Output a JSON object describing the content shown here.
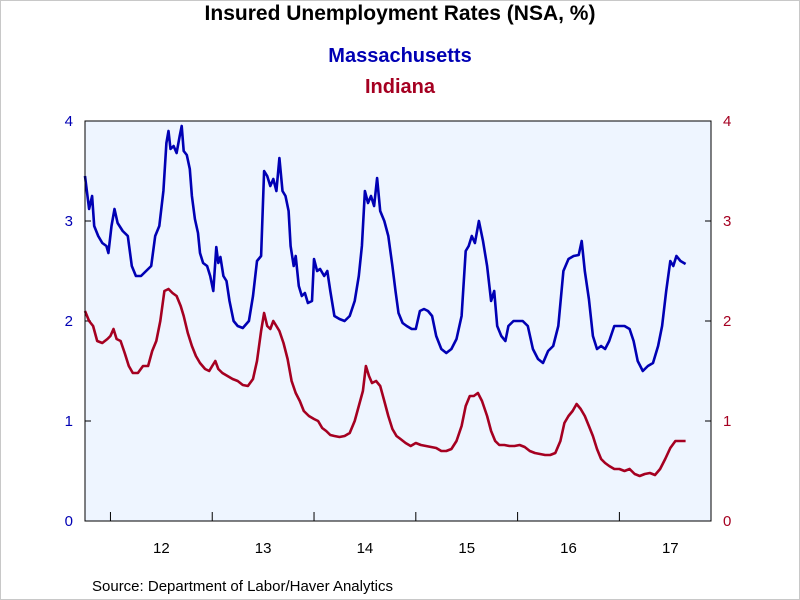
{
  "chart_data": {
    "type": "line",
    "title": "Insured Unemployment Rates (NSA, %)",
    "source": "Source:  Department of Labor/Haver Analytics",
    "x_ticks": [
      "12",
      "13",
      "14",
      "15",
      "16",
      "17"
    ],
    "y_left_ticks": [
      "0",
      "1",
      "2",
      "3",
      "4"
    ],
    "y_right_ticks": [
      "0",
      "1",
      "2",
      "3",
      "4"
    ],
    "y_left_range": [
      0,
      4
    ],
    "y_right_range": [
      0,
      4
    ],
    "x_range": [
      2011.75,
      2017.9
    ],
    "background_color": "#eef5ff",
    "series": [
      {
        "name": "Massachusetts",
        "axis": "left",
        "color": "#0000b4",
        "points": [
          [
            2011.75,
            3.45
          ],
          [
            2011.79,
            3.12
          ],
          [
            2011.82,
            3.25
          ],
          [
            2011.84,
            2.95
          ],
          [
            2011.88,
            2.85
          ],
          [
            2011.92,
            2.78
          ],
          [
            2011.96,
            2.75
          ],
          [
            2011.98,
            2.68
          ],
          [
            2012.01,
            2.95
          ],
          [
            2012.04,
            3.12
          ],
          [
            2012.07,
            2.98
          ],
          [
            2012.12,
            2.9
          ],
          [
            2012.17,
            2.85
          ],
          [
            2012.21,
            2.55
          ],
          [
            2012.25,
            2.45
          ],
          [
            2012.3,
            2.45
          ],
          [
            2012.35,
            2.5
          ],
          [
            2012.4,
            2.55
          ],
          [
            2012.44,
            2.85
          ],
          [
            2012.48,
            2.95
          ],
          [
            2012.52,
            3.3
          ],
          [
            2012.55,
            3.78
          ],
          [
            2012.57,
            3.9
          ],
          [
            2012.59,
            3.72
          ],
          [
            2012.62,
            3.75
          ],
          [
            2012.65,
            3.68
          ],
          [
            2012.68,
            3.85
          ],
          [
            2012.7,
            3.95
          ],
          [
            2012.72,
            3.7
          ],
          [
            2012.75,
            3.66
          ],
          [
            2012.78,
            3.52
          ],
          [
            2012.8,
            3.25
          ],
          [
            2012.83,
            3.02
          ],
          [
            2012.86,
            2.88
          ],
          [
            2012.88,
            2.68
          ],
          [
            2012.91,
            2.58
          ],
          [
            2012.95,
            2.55
          ],
          [
            2012.98,
            2.45
          ],
          [
            2013.01,
            2.3
          ],
          [
            2013.04,
            2.74
          ],
          [
            2013.06,
            2.58
          ],
          [
            2013.08,
            2.64
          ],
          [
            2013.11,
            2.45
          ],
          [
            2013.14,
            2.4
          ],
          [
            2013.17,
            2.2
          ],
          [
            2013.21,
            2.0
          ],
          [
            2013.25,
            1.95
          ],
          [
            2013.3,
            1.93
          ],
          [
            2013.36,
            2.0
          ],
          [
            2013.4,
            2.25
          ],
          [
            2013.44,
            2.6
          ],
          [
            2013.48,
            2.65
          ],
          [
            2013.51,
            3.5
          ],
          [
            2013.54,
            3.45
          ],
          [
            2013.57,
            3.35
          ],
          [
            2013.6,
            3.42
          ],
          [
            2013.63,
            3.3
          ],
          [
            2013.66,
            3.63
          ],
          [
            2013.69,
            3.3
          ],
          [
            2013.72,
            3.25
          ],
          [
            2013.75,
            3.1
          ],
          [
            2013.77,
            2.75
          ],
          [
            2013.8,
            2.55
          ],
          [
            2013.82,
            2.65
          ],
          [
            2013.85,
            2.35
          ],
          [
            2013.88,
            2.25
          ],
          [
            2013.91,
            2.28
          ],
          [
            2013.94,
            2.18
          ],
          [
            2013.98,
            2.2
          ],
          [
            2014.0,
            2.62
          ],
          [
            2014.03,
            2.5
          ],
          [
            2014.06,
            2.52
          ],
          [
            2014.1,
            2.45
          ],
          [
            2014.13,
            2.5
          ],
          [
            2014.16,
            2.3
          ],
          [
            2014.2,
            2.05
          ],
          [
            2014.25,
            2.02
          ],
          [
            2014.3,
            2.0
          ],
          [
            2014.35,
            2.05
          ],
          [
            2014.4,
            2.2
          ],
          [
            2014.44,
            2.45
          ],
          [
            2014.47,
            2.75
          ],
          [
            2014.5,
            3.3
          ],
          [
            2014.53,
            3.18
          ],
          [
            2014.56,
            3.25
          ],
          [
            2014.59,
            3.15
          ],
          [
            2014.62,
            3.43
          ],
          [
            2014.65,
            3.1
          ],
          [
            2014.69,
            3.0
          ],
          [
            2014.73,
            2.85
          ],
          [
            2014.77,
            2.55
          ],
          [
            2014.8,
            2.3
          ],
          [
            2014.83,
            2.08
          ],
          [
            2014.87,
            1.98
          ],
          [
            2014.91,
            1.95
          ],
          [
            2014.96,
            1.92
          ],
          [
            2015.0,
            1.92
          ],
          [
            2015.04,
            2.1
          ],
          [
            2015.08,
            2.12
          ],
          [
            2015.12,
            2.1
          ],
          [
            2015.16,
            2.05
          ],
          [
            2015.2,
            1.85
          ],
          [
            2015.25,
            1.72
          ],
          [
            2015.3,
            1.68
          ],
          [
            2015.35,
            1.72
          ],
          [
            2015.4,
            1.82
          ],
          [
            2015.45,
            2.05
          ],
          [
            2015.49,
            2.7
          ],
          [
            2015.52,
            2.75
          ],
          [
            2015.55,
            2.85
          ],
          [
            2015.58,
            2.78
          ],
          [
            2015.62,
            3.0
          ],
          [
            2015.66,
            2.8
          ],
          [
            2015.7,
            2.55
          ],
          [
            2015.74,
            2.2
          ],
          [
            2015.77,
            2.3
          ],
          [
            2015.8,
            1.95
          ],
          [
            2015.84,
            1.85
          ],
          [
            2015.88,
            1.8
          ],
          [
            2015.91,
            1.95
          ],
          [
            2015.96,
            2.0
          ],
          [
            2016.0,
            2.0
          ],
          [
            2016.05,
            2.0
          ],
          [
            2016.1,
            1.95
          ],
          [
            2016.15,
            1.72
          ],
          [
            2016.2,
            1.62
          ],
          [
            2016.25,
            1.58
          ],
          [
            2016.3,
            1.7
          ],
          [
            2016.35,
            1.75
          ],
          [
            2016.4,
            1.95
          ],
          [
            2016.45,
            2.5
          ],
          [
            2016.5,
            2.62
          ],
          [
            2016.55,
            2.65
          ],
          [
            2016.6,
            2.66
          ],
          [
            2016.63,
            2.8
          ],
          [
            2016.66,
            2.5
          ],
          [
            2016.7,
            2.22
          ],
          [
            2016.74,
            1.85
          ],
          [
            2016.78,
            1.72
          ],
          [
            2016.82,
            1.75
          ],
          [
            2016.86,
            1.72
          ],
          [
            2016.9,
            1.8
          ],
          [
            2016.95,
            1.95
          ],
          [
            2017.0,
            1.95
          ],
          [
            2017.05,
            1.95
          ],
          [
            2017.1,
            1.92
          ],
          [
            2017.14,
            1.8
          ],
          [
            2017.18,
            1.6
          ],
          [
            2017.23,
            1.5
          ],
          [
            2017.28,
            1.55
          ],
          [
            2017.33,
            1.58
          ],
          [
            2017.38,
            1.75
          ],
          [
            2017.42,
            1.95
          ],
          [
            2017.46,
            2.3
          ],
          [
            2017.5,
            2.6
          ],
          [
            2017.53,
            2.55
          ],
          [
            2017.56,
            2.65
          ],
          [
            2017.6,
            2.6
          ],
          [
            2017.65,
            2.57
          ]
        ]
      },
      {
        "name": "Indiana",
        "axis": "right",
        "color": "#a50021",
        "points": [
          [
            2011.75,
            2.1
          ],
          [
            2011.79,
            2.0
          ],
          [
            2011.83,
            1.95
          ],
          [
            2011.87,
            1.8
          ],
          [
            2011.92,
            1.78
          ],
          [
            2011.97,
            1.82
          ],
          [
            2012.0,
            1.85
          ],
          [
            2012.03,
            1.92
          ],
          [
            2012.06,
            1.82
          ],
          [
            2012.1,
            1.8
          ],
          [
            2012.14,
            1.68
          ],
          [
            2012.18,
            1.55
          ],
          [
            2012.22,
            1.48
          ],
          [
            2012.27,
            1.48
          ],
          [
            2012.32,
            1.55
          ],
          [
            2012.37,
            1.55
          ],
          [
            2012.41,
            1.7
          ],
          [
            2012.45,
            1.8
          ],
          [
            2012.49,
            2.0
          ],
          [
            2012.53,
            2.3
          ],
          [
            2012.57,
            2.32
          ],
          [
            2012.61,
            2.28
          ],
          [
            2012.65,
            2.25
          ],
          [
            2012.69,
            2.15
          ],
          [
            2012.72,
            2.05
          ],
          [
            2012.76,
            1.88
          ],
          [
            2012.8,
            1.75
          ],
          [
            2012.84,
            1.65
          ],
          [
            2012.88,
            1.58
          ],
          [
            2012.93,
            1.52
          ],
          [
            2012.97,
            1.5
          ],
          [
            2013.0,
            1.55
          ],
          [
            2013.03,
            1.6
          ],
          [
            2013.06,
            1.52
          ],
          [
            2013.1,
            1.48
          ],
          [
            2013.15,
            1.45
          ],
          [
            2013.2,
            1.42
          ],
          [
            2013.25,
            1.4
          ],
          [
            2013.3,
            1.36
          ],
          [
            2013.35,
            1.35
          ],
          [
            2013.4,
            1.42
          ],
          [
            2013.44,
            1.6
          ],
          [
            2013.48,
            1.9
          ],
          [
            2013.51,
            2.08
          ],
          [
            2013.54,
            1.95
          ],
          [
            2013.57,
            1.92
          ],
          [
            2013.6,
            2.0
          ],
          [
            2013.63,
            1.95
          ],
          [
            2013.66,
            1.9
          ],
          [
            2013.7,
            1.78
          ],
          [
            2013.74,
            1.62
          ],
          [
            2013.78,
            1.4
          ],
          [
            2013.82,
            1.28
          ],
          [
            2013.86,
            1.2
          ],
          [
            2013.9,
            1.1
          ],
          [
            2013.95,
            1.05
          ],
          [
            2014.0,
            1.02
          ],
          [
            2014.04,
            1.0
          ],
          [
            2014.08,
            0.93
          ],
          [
            2014.12,
            0.9
          ],
          [
            2014.16,
            0.86
          ],
          [
            2014.2,
            0.85
          ],
          [
            2014.25,
            0.84
          ],
          [
            2014.3,
            0.85
          ],
          [
            2014.35,
            0.88
          ],
          [
            2014.4,
            1.0
          ],
          [
            2014.44,
            1.15
          ],
          [
            2014.48,
            1.3
          ],
          [
            2014.51,
            1.55
          ],
          [
            2014.54,
            1.45
          ],
          [
            2014.57,
            1.38
          ],
          [
            2014.61,
            1.4
          ],
          [
            2014.65,
            1.35
          ],
          [
            2014.69,
            1.2
          ],
          [
            2014.73,
            1.05
          ],
          [
            2014.77,
            0.92
          ],
          [
            2014.81,
            0.85
          ],
          [
            2014.85,
            0.82
          ],
          [
            2014.9,
            0.78
          ],
          [
            2014.95,
            0.75
          ],
          [
            2015.0,
            0.78
          ],
          [
            2015.05,
            0.76
          ],
          [
            2015.1,
            0.75
          ],
          [
            2015.15,
            0.74
          ],
          [
            2015.2,
            0.73
          ],
          [
            2015.25,
            0.7
          ],
          [
            2015.3,
            0.7
          ],
          [
            2015.35,
            0.72
          ],
          [
            2015.4,
            0.8
          ],
          [
            2015.45,
            0.95
          ],
          [
            2015.49,
            1.15
          ],
          [
            2015.53,
            1.25
          ],
          [
            2015.57,
            1.25
          ],
          [
            2015.61,
            1.28
          ],
          [
            2015.65,
            1.2
          ],
          [
            2015.7,
            1.05
          ],
          [
            2015.74,
            0.9
          ],
          [
            2015.78,
            0.8
          ],
          [
            2015.82,
            0.76
          ],
          [
            2015.87,
            0.76
          ],
          [
            2015.92,
            0.75
          ],
          [
            2015.97,
            0.75
          ],
          [
            2016.02,
            0.76
          ],
          [
            2016.07,
            0.74
          ],
          [
            2016.12,
            0.7
          ],
          [
            2016.17,
            0.68
          ],
          [
            2016.22,
            0.67
          ],
          [
            2016.27,
            0.66
          ],
          [
            2016.32,
            0.66
          ],
          [
            2016.37,
            0.68
          ],
          [
            2016.42,
            0.8
          ],
          [
            2016.46,
            0.98
          ],
          [
            2016.5,
            1.05
          ],
          [
            2016.54,
            1.1
          ],
          [
            2016.58,
            1.17
          ],
          [
            2016.62,
            1.12
          ],
          [
            2016.66,
            1.05
          ],
          [
            2016.7,
            0.95
          ],
          [
            2016.74,
            0.85
          ],
          [
            2016.78,
            0.72
          ],
          [
            2016.82,
            0.62
          ],
          [
            2016.86,
            0.58
          ],
          [
            2016.9,
            0.55
          ],
          [
            2016.95,
            0.52
          ],
          [
            2017.0,
            0.52
          ],
          [
            2017.05,
            0.5
          ],
          [
            2017.1,
            0.52
          ],
          [
            2017.15,
            0.47
          ],
          [
            2017.2,
            0.45
          ],
          [
            2017.25,
            0.47
          ],
          [
            2017.3,
            0.48
          ],
          [
            2017.35,
            0.46
          ],
          [
            2017.4,
            0.52
          ],
          [
            2017.45,
            0.62
          ],
          [
            2017.5,
            0.73
          ],
          [
            2017.55,
            0.8
          ],
          [
            2017.6,
            0.8
          ],
          [
            2017.65,
            0.8
          ]
        ]
      }
    ]
  }
}
